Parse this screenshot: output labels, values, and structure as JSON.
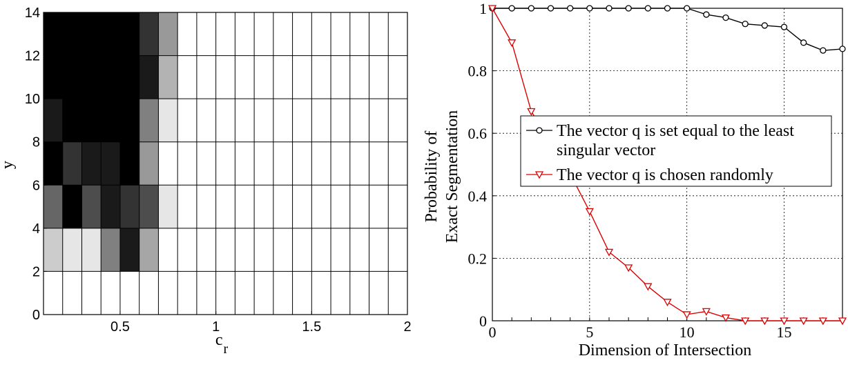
{
  "chart_data": [
    {
      "type": "heatmap",
      "title": "",
      "xlabel": "c",
      "xlabel_sub": "r",
      "ylabel": "y",
      "xlim": [
        0.1,
        2.0
      ],
      "ylim": [
        0,
        14
      ],
      "x_ticks": [
        "0.5",
        "1",
        "1.5",
        "2"
      ],
      "y_ticks": [
        "0",
        "2",
        "4",
        "6",
        "8",
        "10",
        "12",
        "14"
      ],
      "x_centers": [
        0.15,
        0.25,
        0.35,
        0.45,
        0.55,
        0.65,
        0.75,
        0.85,
        0.95,
        1.05,
        1.15,
        1.25,
        1.35,
        1.45,
        1.55,
        1.65,
        1.75,
        1.85,
        1.95
      ],
      "y_centers": [
        1,
        3,
        5,
        7,
        9,
        11,
        13
      ],
      "colormap": "gray (0 = black, 1 = white)",
      "grid": true,
      "values": [
        [
          1,
          1,
          1,
          1,
          1,
          1,
          1,
          1,
          1,
          1,
          1,
          1,
          1,
          1,
          1,
          1,
          1,
          1,
          1
        ],
        [
          0.8,
          0.9,
          0.9,
          0.5,
          0.1,
          0.65,
          1,
          1,
          1,
          1,
          1,
          1,
          1,
          1,
          1,
          1,
          1,
          1,
          1
        ],
        [
          0.4,
          0.0,
          0.3,
          0.1,
          0.2,
          0.3,
          0.9,
          1,
          1,
          1,
          1,
          1,
          1,
          1,
          1,
          1,
          1,
          1,
          1
        ],
        [
          0.0,
          0.2,
          0.1,
          0.1,
          0.0,
          0.6,
          1,
          1,
          1,
          1,
          1,
          1,
          1,
          1,
          1,
          1,
          1,
          1,
          1
        ],
        [
          0.1,
          0.0,
          0.0,
          0.0,
          0.0,
          0.5,
          0.9,
          1,
          1,
          1,
          1,
          1,
          1,
          1,
          1,
          1,
          1,
          1,
          1
        ],
        [
          0.0,
          0.0,
          0.0,
          0.0,
          0.0,
          0.1,
          0.7,
          1,
          1,
          1,
          1,
          1,
          1,
          1,
          1,
          1,
          1,
          1,
          1
        ],
        [
          0.0,
          0.0,
          0.0,
          0.0,
          0.0,
          0.2,
          0.6,
          1,
          1,
          1,
          1,
          1,
          1,
          1,
          1,
          1,
          1,
          1,
          1
        ]
      ]
    },
    {
      "type": "line",
      "title": "",
      "xlabel": "Dimension of Intersection",
      "ylabel_lines": [
        "Probability of",
        "Exact Segmentation"
      ],
      "xlim": [
        0,
        18
      ],
      "ylim": [
        0,
        1
      ],
      "x_ticks": [
        "0",
        "5",
        "10",
        "15"
      ],
      "y_ticks": [
        "0",
        "0.2",
        "0.4",
        "0.6",
        "0.8",
        "1"
      ],
      "grid": true,
      "legend_position": "center-right",
      "x": [
        0,
        1,
        2,
        3,
        4,
        5,
        6,
        7,
        8,
        9,
        10,
        11,
        12,
        13,
        14,
        15,
        16,
        17,
        18
      ],
      "series": [
        {
          "name_lines": [
            "The vector q is set equal to the least",
            "singular vector"
          ],
          "color": "#000000",
          "marker": "circle",
          "values": [
            1,
            1,
            1,
            1,
            1,
            1,
            1,
            1,
            1,
            1,
            1,
            0.98,
            0.97,
            0.95,
            0.945,
            0.94,
            0.89,
            0.865,
            0.87
          ]
        },
        {
          "name_lines": [
            "The vector q is chosen randomly"
          ],
          "color": "#dd0000",
          "marker": "triangle-down",
          "values": [
            1,
            0.89,
            0.67,
            0.57,
            0.47,
            0.35,
            0.22,
            0.17,
            0.11,
            0.06,
            0.02,
            0.03,
            0.01,
            0.0,
            0.0,
            0.0,
            0.0,
            0.0,
            0.0
          ]
        }
      ]
    }
  ]
}
